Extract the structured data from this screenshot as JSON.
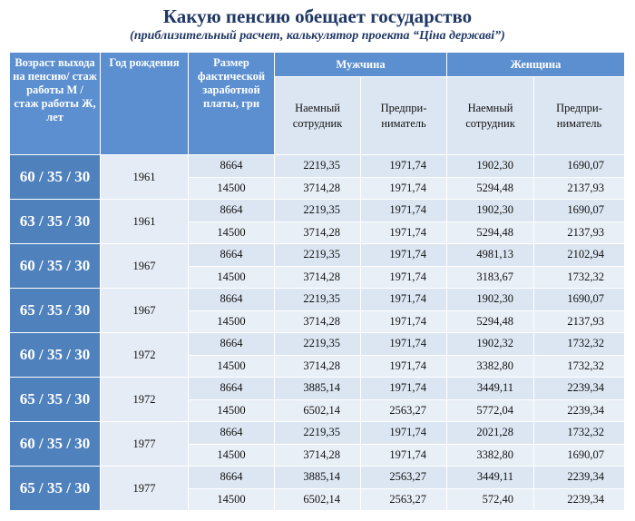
{
  "header": {
    "title": "Какую пенсию обещает государство",
    "subtitle": "(приблизительный расчет, калькулятор проекта “Ціна державі”)"
  },
  "table": {
    "columns": {
      "age": "Возраст выхода на пенсию/ стаж работы М / стаж работы Ж, лет",
      "year": "Год рождения",
      "salary": "Размер фактической заработной платы, грн",
      "man": "Мужчина",
      "woman": "Женщина",
      "employee": "Наемный сотрудник",
      "entrepreneur": "Предпри-ниматель"
    },
    "groups": [
      {
        "age": "60 / 35 / 30",
        "year": "1961",
        "rows": [
          [
            "8664",
            "2219,35",
            "1971,74",
            "1902,30",
            "1690,07"
          ],
          [
            "14500",
            "3714,28",
            "1971,74",
            "5294,48",
            "2137,93"
          ]
        ]
      },
      {
        "age": "63 / 35 / 30",
        "year": "1961",
        "rows": [
          [
            "8664",
            "2219,35",
            "1971,74",
            "1902,30",
            "1690,07"
          ],
          [
            "14500",
            "3714,28",
            "1971,74",
            "5294,48",
            "2137,93"
          ]
        ]
      },
      {
        "age": "60 / 35 / 30",
        "year": "1967",
        "rows": [
          [
            "8664",
            "2219,35",
            "1971,74",
            "4981,13",
            "2102,94"
          ],
          [
            "14500",
            "3714,28",
            "1971,74",
            "3183,67",
            "1732,32"
          ]
        ]
      },
      {
        "age": "65 / 35 / 30",
        "year": "1967",
        "rows": [
          [
            "8664",
            "2219,35",
            "1971,74",
            "1902,30",
            "1690,07"
          ],
          [
            "14500",
            "3714,28",
            "1971,74",
            "5294,48",
            "2137,93"
          ]
        ]
      },
      {
        "age": "60 / 35 / 30",
        "year": "1972",
        "rows": [
          [
            "8664",
            "2219,35",
            "1971,74",
            "1902,32",
            "1732,32"
          ],
          [
            "14500",
            "3714,28",
            "1971,74",
            "3382,80",
            "1732,32"
          ]
        ]
      },
      {
        "age": "65 / 35 / 30",
        "year": "1972",
        "rows": [
          [
            "8664",
            "3885,14",
            "1971,74",
            "3449,11",
            "2239,34"
          ],
          [
            "14500",
            "6502,14",
            "2563,27",
            "5772,04",
            "2239,34"
          ]
        ]
      },
      {
        "age": "60 / 35 / 30",
        "year": "1977",
        "rows": [
          [
            "8664",
            "2219,35",
            "1971,74",
            "2021,28",
            "1732,32"
          ],
          [
            "14500",
            "3714,28",
            "1971,74",
            "3382,80",
            "1690,07"
          ]
        ]
      },
      {
        "age": "65 / 35 / 30",
        "year": "1977",
        "rows": [
          [
            "8664",
            "3885,14",
            "2563,27",
            "3449,11",
            "2239,34"
          ],
          [
            "14500",
            "6502,14",
            "2563,27",
            "572,40",
            "2239,34"
          ]
        ]
      }
    ]
  }
}
